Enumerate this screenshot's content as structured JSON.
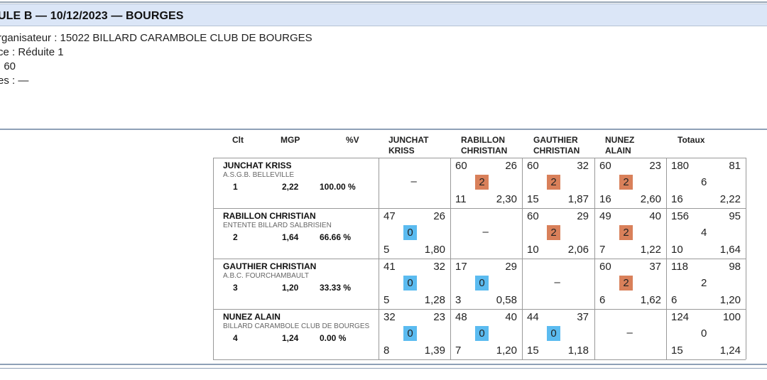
{
  "header": {
    "title": "ULE B — 10/12/2023 — BOURGES"
  },
  "info": {
    "organisateur": "rganisateur : 15022 BILLARD CARAMBOLE CLUB DE BOURGES",
    "categorie": "ce : Réduite 1",
    "distance": ": 60",
    "reprises": "es : —"
  },
  "table": {
    "columns": {
      "clt": "Clt",
      "mgp": "MGP",
      "pv": "%V",
      "col1_line1": "JUNCHAT",
      "col1_line2": "KRISS",
      "col2_line1": "RABILLON",
      "col2_line2": "CHRISTIAN",
      "col3_line1": "GAUTHIER",
      "col3_line2": "CHRISTIAN",
      "col4_line1": "NUNEZ",
      "col4_line2": "ALAIN",
      "totaux": "Totaux"
    },
    "dash": "–",
    "players": [
      {
        "name": "JUNCHAT KRISS",
        "club": "A.S.G.B. BELLEVILLE",
        "clt": "1",
        "mgp": "2,22",
        "pv": "100.00 %",
        "cells": [
          null,
          {
            "points": "60",
            "reprises": "26",
            "pts_match": "2",
            "serie": "11",
            "moyenne": "2,30"
          },
          {
            "points": "60",
            "reprises": "32",
            "pts_match": "2",
            "serie": "15",
            "moyenne": "1,87"
          },
          {
            "points": "60",
            "reprises": "23",
            "pts_match": "2",
            "serie": "16",
            "moyenne": "2,60"
          }
        ],
        "totals": {
          "points": "180",
          "reprises": "81",
          "pts_match": "6",
          "serie": "16",
          "moyenne": "2,22"
        }
      },
      {
        "name": "RABILLON CHRISTIAN",
        "club": "ENTENTE BILLARD SALBRISIEN",
        "clt": "2",
        "mgp": "1,64",
        "pv": "66.66 %",
        "cells": [
          {
            "points": "47",
            "reprises": "26",
            "pts_match": "0",
            "serie": "5",
            "moyenne": "1,80"
          },
          null,
          {
            "points": "60",
            "reprises": "29",
            "pts_match": "2",
            "serie": "10",
            "moyenne": "2,06"
          },
          {
            "points": "49",
            "reprises": "40",
            "pts_match": "2",
            "serie": "7",
            "moyenne": "1,22"
          }
        ],
        "totals": {
          "points": "156",
          "reprises": "95",
          "pts_match": "4",
          "serie": "10",
          "moyenne": "1,64"
        }
      },
      {
        "name": "GAUTHIER CHRISTIAN",
        "club": "A.B.C. FOURCHAMBAULT",
        "clt": "3",
        "mgp": "1,20",
        "pv": "33.33 %",
        "cells": [
          {
            "points": "41",
            "reprises": "32",
            "pts_match": "0",
            "serie": "5",
            "moyenne": "1,28"
          },
          {
            "points": "17",
            "reprises": "29",
            "pts_match": "0",
            "serie": "3",
            "moyenne": "0,58"
          },
          null,
          {
            "points": "60",
            "reprises": "37",
            "pts_match": "2",
            "serie": "6",
            "moyenne": "1,62"
          }
        ],
        "totals": {
          "points": "118",
          "reprises": "98",
          "pts_match": "2",
          "serie": "6",
          "moyenne": "1,20"
        }
      },
      {
        "name": "NUNEZ ALAIN",
        "club": "BILLARD CARAMBOLE CLUB DE BOURGES",
        "clt": "4",
        "mgp": "1,24",
        "pv": "0.00 %",
        "cells": [
          {
            "points": "32",
            "reprises": "23",
            "pts_match": "0",
            "serie": "8",
            "moyenne": "1,39"
          },
          {
            "points": "48",
            "reprises": "40",
            "pts_match": "0",
            "serie": "7",
            "moyenne": "1,20"
          },
          {
            "points": "44",
            "reprises": "37",
            "pts_match": "0",
            "serie": "15",
            "moyenne": "1,18"
          },
          null
        ],
        "totals": {
          "points": "124",
          "reprises": "100",
          "pts_match": "0",
          "serie": "15",
          "moyenne": "1,24"
        }
      }
    ]
  },
  "colors": {
    "header_band": "#dbe6f7",
    "win_badge": "#d9805a",
    "loss_badge": "#5bbbf0",
    "rule": "#8ea0b7"
  }
}
